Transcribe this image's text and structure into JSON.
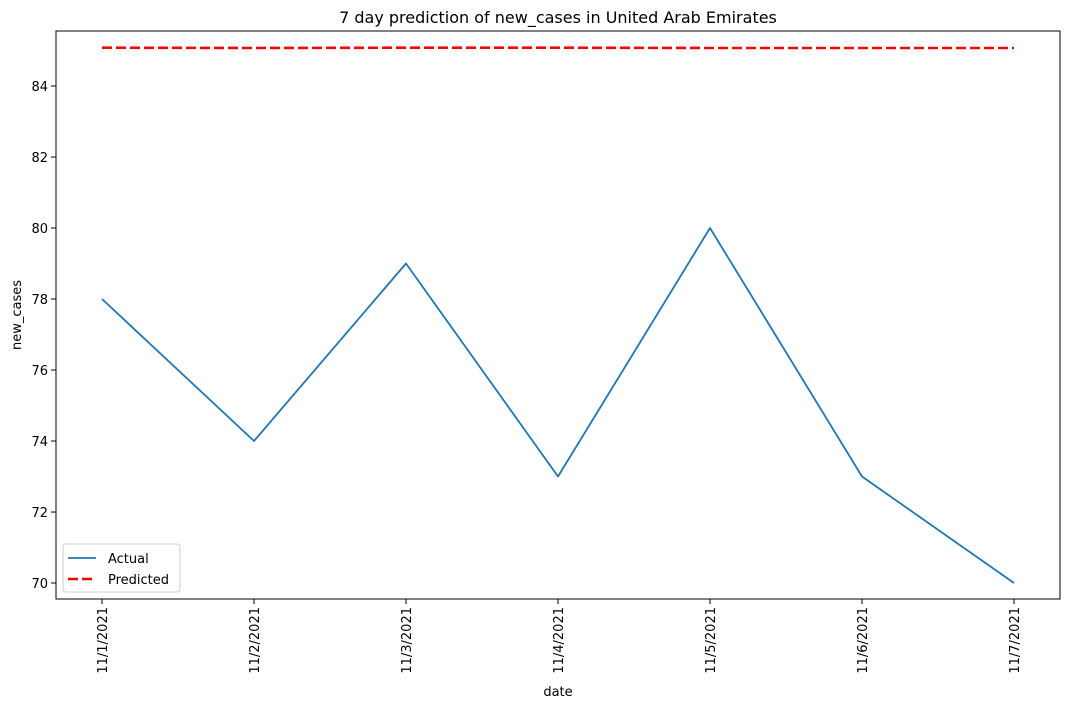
{
  "chart_data": {
    "type": "line",
    "title": "7 day prediction of new_cases in United Arab Emirates",
    "xlabel": "date",
    "ylabel": "new_cases",
    "categories": [
      "11/1/2021",
      "11/2/2021",
      "11/3/2021",
      "11/4/2021",
      "11/5/2021",
      "11/6/2021",
      "11/7/2021"
    ],
    "ylim": [
      69.55,
      85.55
    ],
    "yticks": [
      "70",
      "72",
      "74",
      "76",
      "78",
      "80",
      "82",
      "84"
    ],
    "grid": false,
    "legend_position": "lower-left",
    "series": [
      {
        "name": "Actual",
        "color": "#1f77b4",
        "style": "solid",
        "values": [
          78,
          74,
          79,
          73,
          80,
          73,
          70
        ]
      },
      {
        "name": "Predicted",
        "color": "#ff0000",
        "style": "dashed",
        "values": [
          85.08,
          85.07,
          85.08,
          85.08,
          85.07,
          85.07,
          85.07
        ]
      }
    ]
  }
}
